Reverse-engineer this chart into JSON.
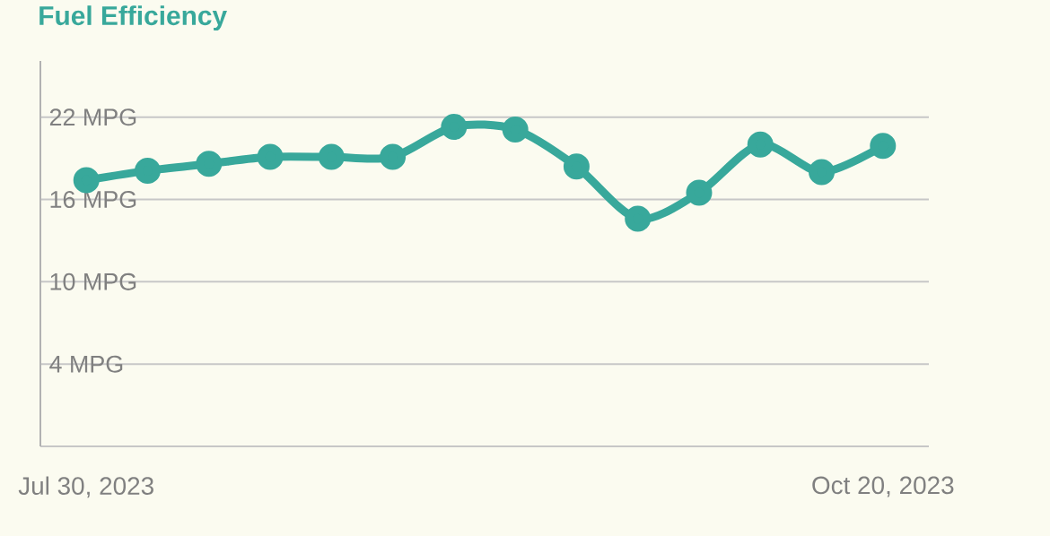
{
  "chart_data": {
    "type": "line",
    "title": "Fuel Efficiency",
    "categories": [
      "Jul 30, 2023",
      null,
      null,
      null,
      null,
      null,
      null,
      null,
      null,
      null,
      null,
      null,
      null,
      "Oct 20, 2023"
    ],
    "series": [
      {
        "color": "#38a89b",
        "values": [
          17.4,
          18.1,
          18.6,
          19.1,
          19.1,
          19.1,
          21.3,
          21.1,
          18.4,
          14.6,
          16.5,
          20.0,
          18.0,
          19.9
        ]
      }
    ],
    "ylim": [
      -2,
      26.1
    ],
    "yticks": [
      {
        "value": -2,
        "label": null
      },
      {
        "value": 4,
        "label": "4 MPG"
      },
      {
        "value": 10,
        "label": "10 MPG"
      },
      {
        "value": 16,
        "label": "16 MPG"
      },
      {
        "value": 22,
        "label": "22 MPG"
      }
    ],
    "grid": "y",
    "marker": "circle",
    "line_style": "solid"
  }
}
